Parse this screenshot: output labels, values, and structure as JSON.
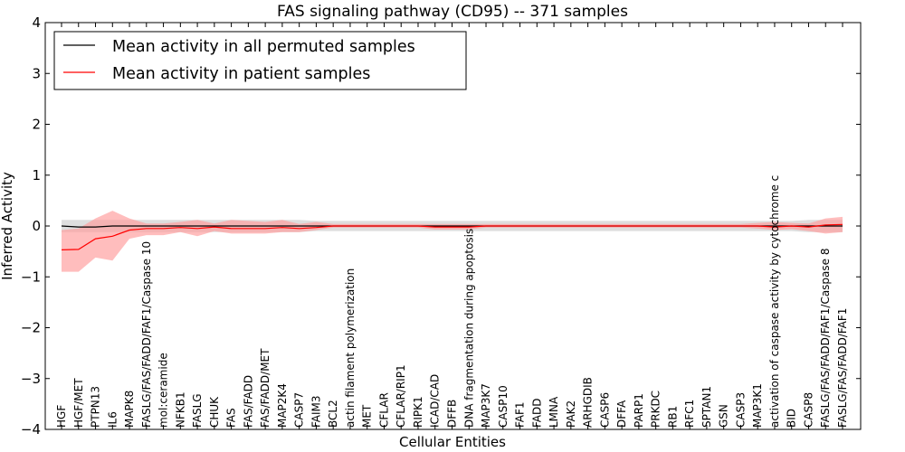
{
  "chart_data": {
    "type": "line",
    "title": "FAS signaling pathway (CD95) -- 371 samples",
    "xlabel": "Cellular Entities",
    "ylabel": "Inferred Activity",
    "ylim": [
      -4,
      4
    ],
    "yticks": [
      4,
      3,
      2,
      1,
      0,
      -1,
      -2,
      -3,
      -4
    ],
    "ytick_labels": [
      "4",
      "3",
      "2",
      "1",
      "0",
      "−1",
      "−2",
      "−3",
      "−4"
    ],
    "legend_position": "top-left",
    "categories": [
      "HGF",
      "HGF/MET",
      "PTPN13",
      "IL6",
      "MAPK8",
      "FASLG/FAS/FADD/FAF1/Caspase 10",
      "mol:ceramide",
      "NFKB1",
      "FASLG",
      "CHUK",
      "FAS",
      "FAS/FADD",
      "FAS/FADD/MET",
      "MAP2K4",
      "CASP7",
      "FAIM3",
      "BCL2",
      "actin filament polymerization",
      "MET",
      "CFLAR",
      "CFLAR/RIP1",
      "RIPK1",
      "ICAD/CAD",
      "DFFB",
      "DNA fragmentation during apoptosis",
      "MAP3K7",
      "CASP10",
      "FAF1",
      "FADD",
      "LMNA",
      "PAK2",
      "ARHGDIB",
      "CASP6",
      "DFFA",
      "PARP1",
      "PRKDC",
      "RB1",
      "RFC1",
      "SPTAN1",
      "GSN",
      "CASP3",
      "MAP3K1",
      "activation of caspase activity by cytochrome c",
      "BID",
      "CASP8",
      "FASLG/FAS/FADD/FAF1/Caspase 8",
      "FASLG/FAS/FADD/FAF1"
    ],
    "series": [
      {
        "name": "Mean activity in all permuted samples",
        "color": "#000000",
        "band_color": "#c8c8c8",
        "values": [
          0,
          -0.02,
          -0.02,
          0,
          0,
          0,
          0,
          0,
          0,
          0,
          0,
          0,
          0,
          0,
          0,
          0,
          0,
          0,
          0,
          0,
          0,
          0,
          0,
          0,
          0,
          0,
          0,
          0,
          0,
          0,
          0,
          0,
          0,
          0,
          0,
          0,
          0,
          0,
          0,
          0,
          0,
          0,
          0,
          0,
          0,
          0,
          0
        ],
        "lower": [
          -0.12,
          -0.12,
          -0.12,
          -0.12,
          -0.12,
          -0.12,
          -0.12,
          -0.12,
          -0.12,
          -0.12,
          -0.12,
          -0.12,
          -0.12,
          -0.12,
          -0.12,
          -0.1,
          -0.1,
          -0.1,
          -0.1,
          -0.1,
          -0.1,
          -0.1,
          -0.1,
          -0.1,
          -0.1,
          -0.1,
          -0.1,
          -0.1,
          -0.1,
          -0.1,
          -0.1,
          -0.1,
          -0.1,
          -0.1,
          -0.1,
          -0.1,
          -0.1,
          -0.1,
          -0.1,
          -0.1,
          -0.1,
          -0.1,
          -0.1,
          -0.1,
          -0.12,
          -0.12,
          -0.12
        ],
        "upper": [
          0.12,
          0.12,
          0.12,
          0.12,
          0.12,
          0.12,
          0.12,
          0.12,
          0.12,
          0.12,
          0.12,
          0.12,
          0.12,
          0.12,
          0.12,
          0.1,
          0.1,
          0.1,
          0.1,
          0.1,
          0.1,
          0.1,
          0.1,
          0.1,
          0.1,
          0.1,
          0.1,
          0.1,
          0.1,
          0.1,
          0.1,
          0.1,
          0.1,
          0.1,
          0.1,
          0.1,
          0.1,
          0.1,
          0.1,
          0.1,
          0.1,
          0.1,
          0.1,
          0.1,
          0.12,
          0.12,
          0.12
        ]
      },
      {
        "name": "Mean activity in patient samples",
        "color": "#ff0000",
        "band_color": "#ff9999",
        "values": [
          -0.47,
          -0.46,
          -0.25,
          -0.2,
          -0.08,
          -0.05,
          -0.05,
          -0.03,
          -0.05,
          -0.02,
          -0.05,
          -0.05,
          -0.05,
          -0.03,
          -0.05,
          -0.03,
          0,
          0,
          0,
          0,
          0,
          0,
          -0.02,
          -0.02,
          -0.02,
          0,
          0,
          0,
          0,
          0,
          0,
          0,
          0,
          0,
          0,
          0,
          0,
          0,
          0,
          0,
          0,
          0,
          -0.02,
          0,
          -0.02,
          0.02,
          0.03
        ],
        "lower": [
          -0.9,
          -0.9,
          -0.62,
          -0.68,
          -0.25,
          -0.18,
          -0.18,
          -0.12,
          -0.2,
          -0.1,
          -0.15,
          -0.15,
          -0.15,
          -0.12,
          -0.12,
          -0.08,
          -0.03,
          -0.03,
          -0.03,
          -0.03,
          -0.03,
          -0.03,
          -0.07,
          -0.07,
          -0.07,
          -0.03,
          -0.03,
          -0.03,
          -0.03,
          -0.03,
          -0.03,
          -0.03,
          -0.03,
          -0.03,
          -0.03,
          -0.03,
          -0.03,
          -0.03,
          -0.03,
          -0.03,
          -0.03,
          -0.05,
          -0.08,
          -0.06,
          -0.1,
          -0.15,
          -0.12
        ],
        "upper": [
          -0.08,
          -0.05,
          0.15,
          0.3,
          0.15,
          0.05,
          0.05,
          0.08,
          0.12,
          0.05,
          0.12,
          0.1,
          0.08,
          0.12,
          0.04,
          0.08,
          0.04,
          0.04,
          0.04,
          0.04,
          0.04,
          0.04,
          0.04,
          0.04,
          0.04,
          0.04,
          0.04,
          0.04,
          0.04,
          0.04,
          0.04,
          0.04,
          0.04,
          0.04,
          0.04,
          0.04,
          0.04,
          0.04,
          0.04,
          0.04,
          0.04,
          0.06,
          0.08,
          0.06,
          0.05,
          0.15,
          0.18
        ]
      }
    ]
  }
}
